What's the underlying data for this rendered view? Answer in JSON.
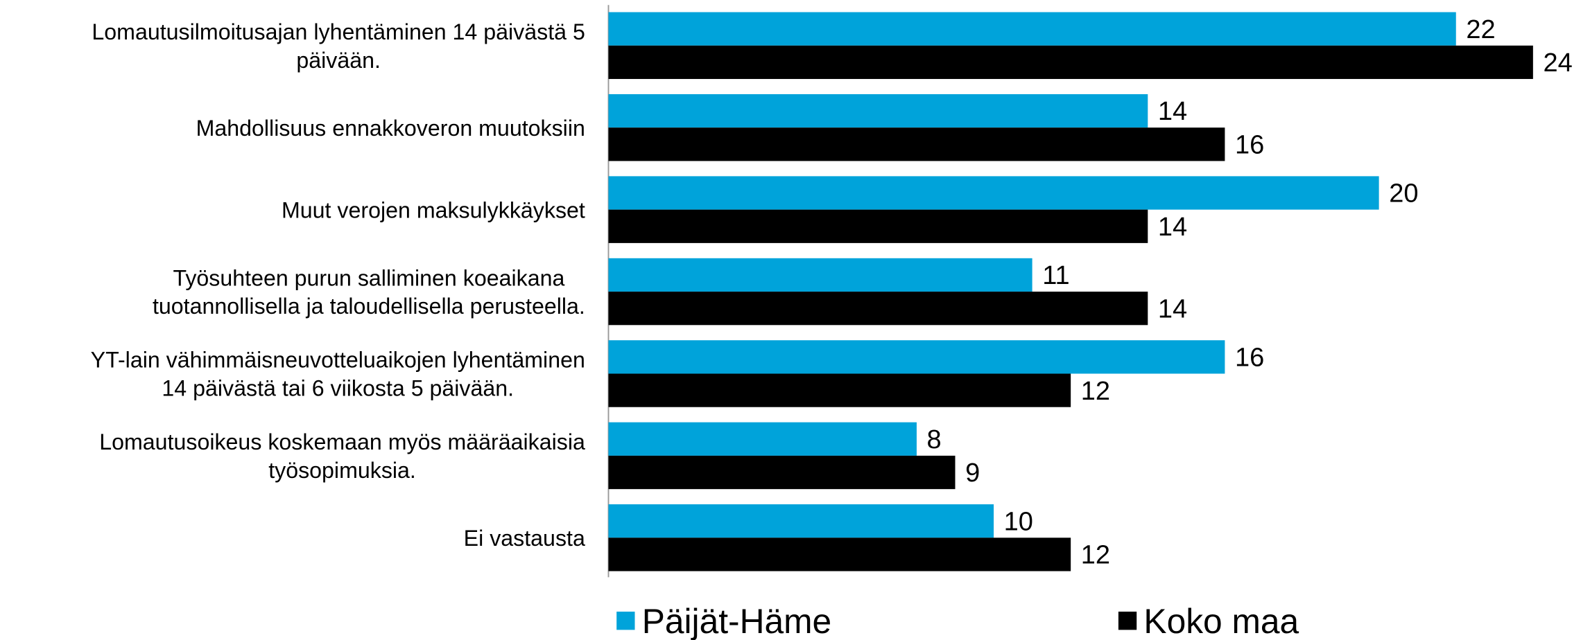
{
  "chart_data": {
    "type": "barh",
    "categories": [
      "Lomautusilmoitusajan lyhentäminen 14 päivästä 5\npäivään.",
      "Mahdollisuus ennakkoveron muutoksiin",
      "Muut verojen maksulykkäykset",
      "Työsuhteen purun salliminen koeaikana\ntuotannollisella ja taloudellisella perusteella.",
      "YT-lain vähimmäisneuvotteluaikojen lyhentäminen\n14 päivästä tai 6 viikosta 5 päivään.",
      "Lomautusoikeus koskemaan myös määräaikaisia\ntyösopimuksia.",
      "Ei vastausta"
    ],
    "series": [
      {
        "name": "Päijät-Häme",
        "color": "#00a3da",
        "values": [
          22,
          14,
          20,
          11,
          16,
          8,
          10
        ]
      },
      {
        "name": "Koko maa",
        "color": "#000000",
        "values": [
          24,
          16,
          14,
          14,
          12,
          9,
          12
        ]
      }
    ],
    "xlim": [
      0,
      25
    ],
    "legend": "bottom"
  }
}
